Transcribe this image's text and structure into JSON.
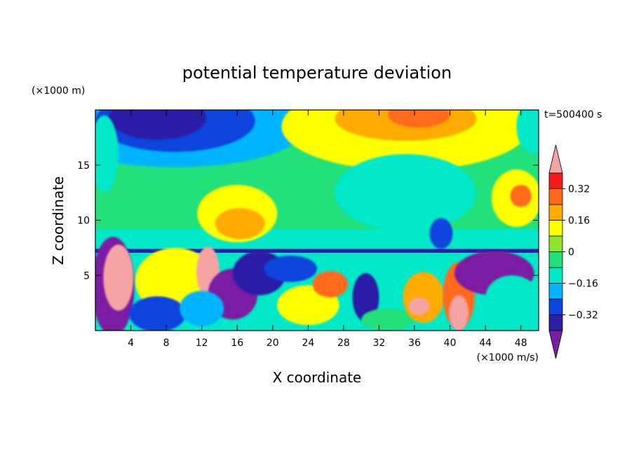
{
  "chart_data": {
    "type": "heatmap",
    "title": "potential temperature deviation",
    "xlabel": "X coordinate",
    "ylabel": "Z coordinate",
    "x_unit": "(×1000 m/s)",
    "y_unit": "(×1000 m)",
    "time_label": "t=500400 s",
    "xlim": [
      0,
      50
    ],
    "ylim": [
      0,
      20
    ],
    "xticks": [
      4,
      8,
      12,
      16,
      20,
      24,
      28,
      32,
      36,
      40,
      44,
      48
    ],
    "yticks": [
      5,
      10,
      15
    ],
    "colorbar": {
      "ticks": [
        0.32,
        0.16,
        0,
        -0.16,
        -0.32
      ],
      "tick_labels": [
        "0.32",
        "0.16",
        "0",
        "−0.16",
        "−0.32"
      ],
      "levels": [
        -0.4,
        -0.32,
        -0.24,
        -0.16,
        -0.08,
        0,
        0.08,
        0.16,
        0.24,
        0.32,
        0.4
      ],
      "colors": [
        "#7b1fa2",
        "#2b1fa6",
        "#1144dd",
        "#00b4ff",
        "#00e8c8",
        "#22e07a",
        "#8ee52a",
        "#ffff00",
        "#ffaa00",
        "#ff6a1a",
        "#f21c1c",
        "#f5a3a3"
      ],
      "extend": "both"
    },
    "grid": false,
    "legend": "colorbar-right"
  }
}
